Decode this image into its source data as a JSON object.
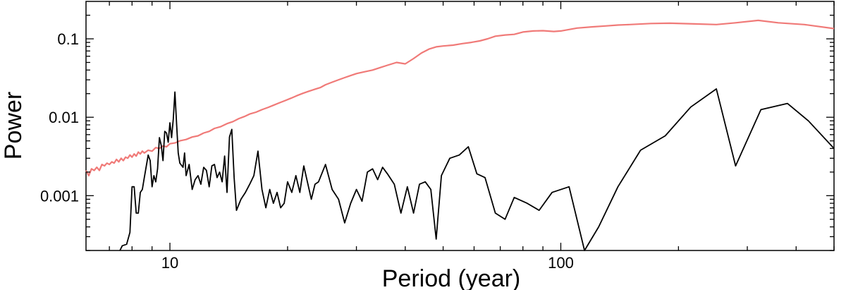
{
  "chart_data": {
    "type": "line",
    "title": "",
    "xlabel": "Period (year)",
    "ylabel": "Power",
    "x_scale": "log",
    "y_scale": "log",
    "xlim": [
      6.1,
      500
    ],
    "ylim": [
      0.0002,
      0.3
    ],
    "grid": false,
    "legend": "none",
    "x_ticks": [
      {
        "value": 10,
        "label": "10"
      },
      {
        "value": 100,
        "label": "100"
      }
    ],
    "y_ticks": [
      {
        "value": 0.001,
        "label": "0.001"
      },
      {
        "value": 0.01,
        "label": "0.01"
      },
      {
        "value": 0.1,
        "label": "0.1"
      }
    ],
    "series": [
      {
        "color": "#f07a78",
        "points": [
          [
            6.1,
            0.0021
          ],
          [
            6.2,
            0.0018
          ],
          [
            6.3,
            0.0022
          ],
          [
            6.4,
            0.0021
          ],
          [
            6.5,
            0.0023
          ],
          [
            6.6,
            0.0021
          ],
          [
            6.7,
            0.0025
          ],
          [
            6.8,
            0.0024
          ],
          [
            6.9,
            0.0026
          ],
          [
            7.0,
            0.0025
          ],
          [
            7.1,
            0.0027
          ],
          [
            7.2,
            0.0026
          ],
          [
            7.3,
            0.0029
          ],
          [
            7.4,
            0.0027
          ],
          [
            7.5,
            0.003
          ],
          [
            7.6,
            0.0028
          ],
          [
            7.7,
            0.0031
          ],
          [
            7.8,
            0.003
          ],
          [
            7.9,
            0.0033
          ],
          [
            8.0,
            0.0031
          ],
          [
            8.1,
            0.0034
          ],
          [
            8.2,
            0.0032
          ],
          [
            8.3,
            0.0036
          ],
          [
            8.4,
            0.0034
          ],
          [
            8.5,
            0.0037
          ],
          [
            8.6,
            0.0035
          ],
          [
            8.8,
            0.0038
          ],
          [
            9.0,
            0.0037
          ],
          [
            9.2,
            0.0041
          ],
          [
            9.4,
            0.004
          ],
          [
            9.6,
            0.0043
          ],
          [
            9.8,
            0.0042
          ],
          [
            10.0,
            0.0046
          ],
          [
            10.3,
            0.0047
          ],
          [
            10.6,
            0.005
          ],
          [
            11.0,
            0.0052
          ],
          [
            11.4,
            0.0056
          ],
          [
            11.8,
            0.0058
          ],
          [
            12.2,
            0.0063
          ],
          [
            12.6,
            0.0066
          ],
          [
            13.0,
            0.0072
          ],
          [
            13.5,
            0.0076
          ],
          [
            14.0,
            0.0083
          ],
          [
            14.5,
            0.0088
          ],
          [
            15.0,
            0.0096
          ],
          [
            15.5,
            0.0102
          ],
          [
            16.0,
            0.011
          ],
          [
            16.6,
            0.0116
          ],
          [
            17.2,
            0.0125
          ],
          [
            17.8,
            0.0133
          ],
          [
            18.4,
            0.0142
          ],
          [
            19.0,
            0.0152
          ],
          [
            19.7,
            0.0163
          ],
          [
            20.4,
            0.0175
          ],
          [
            21.1,
            0.0188
          ],
          [
            21.9,
            0.0202
          ],
          [
            22.7,
            0.0215
          ],
          [
            23.5,
            0.0228
          ],
          [
            24.3,
            0.024
          ],
          [
            25.0,
            0.026
          ],
          [
            26.0,
            0.028
          ],
          [
            27.0,
            0.03
          ],
          [
            28.0,
            0.032
          ],
          [
            29.0,
            0.034
          ],
          [
            30.0,
            0.036
          ],
          [
            31.5,
            0.038
          ],
          [
            33.0,
            0.04
          ],
          [
            34.5,
            0.043
          ],
          [
            36.0,
            0.046
          ],
          [
            38.0,
            0.05
          ],
          [
            40.0,
            0.048
          ],
          [
            42.0,
            0.056
          ],
          [
            44.0,
            0.066
          ],
          [
            46.0,
            0.074
          ],
          [
            48.0,
            0.079
          ],
          [
            50.0,
            0.081
          ],
          [
            53.0,
            0.083
          ],
          [
            56.0,
            0.087
          ],
          [
            59.0,
            0.09
          ],
          [
            62.0,
            0.094
          ],
          [
            65.0,
            0.1
          ],
          [
            68.0,
            0.108
          ],
          [
            72.0,
            0.112
          ],
          [
            76.0,
            0.114
          ],
          [
            80.0,
            0.122
          ],
          [
            85.0,
            0.126
          ],
          [
            90.0,
            0.127
          ],
          [
            96.0,
            0.124
          ],
          [
            100.0,
            0.126
          ],
          [
            110.0,
            0.137
          ],
          [
            120.0,
            0.142
          ],
          [
            130.0,
            0.146
          ],
          [
            140.0,
            0.15
          ],
          [
            150.0,
            0.152
          ],
          [
            170.0,
            0.157
          ],
          [
            190.0,
            0.158
          ],
          [
            220.0,
            0.155
          ],
          [
            250.0,
            0.152
          ],
          [
            280.0,
            0.16
          ],
          [
            320.0,
            0.172
          ],
          [
            360.0,
            0.16
          ],
          [
            420.0,
            0.152
          ],
          [
            500.0,
            0.135
          ]
        ]
      },
      {
        "color": "#000000",
        "points": [
          [
            7.45,
            0.0002
          ],
          [
            7.55,
            0.00023
          ],
          [
            7.75,
            0.00024
          ],
          [
            7.9,
            0.00034
          ],
          [
            8.0,
            0.0013
          ],
          [
            8.1,
            0.0013
          ],
          [
            8.2,
            0.0006
          ],
          [
            8.3,
            0.0006
          ],
          [
            8.4,
            0.0011
          ],
          [
            8.5,
            0.0012
          ],
          [
            8.6,
            0.0017
          ],
          [
            8.8,
            0.0033
          ],
          [
            8.9,
            0.0028
          ],
          [
            9.0,
            0.0013
          ],
          [
            9.1,
            0.0018
          ],
          [
            9.2,
            0.0015
          ],
          [
            9.3,
            0.0022
          ],
          [
            9.4,
            0.0055
          ],
          [
            9.5,
            0.0044
          ],
          [
            9.6,
            0.0028
          ],
          [
            9.7,
            0.0066
          ],
          [
            9.8,
            0.0063
          ],
          [
            9.9,
            0.0048
          ],
          [
            10.0,
            0.0085
          ],
          [
            10.1,
            0.0055
          ],
          [
            10.2,
            0.0095
          ],
          [
            10.3,
            0.021
          ],
          [
            10.4,
            0.0082
          ],
          [
            10.5,
            0.0035
          ],
          [
            10.6,
            0.0026
          ],
          [
            10.8,
            0.0023
          ],
          [
            10.9,
            0.0035
          ],
          [
            11.0,
            0.0018
          ],
          [
            11.2,
            0.0025
          ],
          [
            11.4,
            0.0012
          ],
          [
            11.6,
            0.0016
          ],
          [
            11.8,
            0.0018
          ],
          [
            12.0,
            0.0014
          ],
          [
            12.2,
            0.0023
          ],
          [
            12.4,
            0.0021
          ],
          [
            12.6,
            0.0013
          ],
          [
            12.8,
            0.0024
          ],
          [
            13.0,
            0.0025
          ],
          [
            13.2,
            0.0017
          ],
          [
            13.4,
            0.002
          ],
          [
            13.6,
            0.0015
          ],
          [
            13.8,
            0.0032
          ],
          [
            14.0,
            0.0011
          ],
          [
            14.2,
            0.0056
          ],
          [
            14.4,
            0.007
          ],
          [
            14.6,
            0.0017
          ],
          [
            14.8,
            0.00065
          ],
          [
            15.2,
            0.0009
          ],
          [
            15.6,
            0.0011
          ],
          [
            16.0,
            0.0014
          ],
          [
            16.4,
            0.0018
          ],
          [
            16.8,
            0.0037
          ],
          [
            17.2,
            0.0012
          ],
          [
            17.6,
            0.0007
          ],
          [
            18.0,
            0.0012
          ],
          [
            18.4,
            0.0008
          ],
          [
            18.8,
            0.0011
          ],
          [
            19.2,
            0.0007
          ],
          [
            19.6,
            0.0008
          ],
          [
            20.0,
            0.0015
          ],
          [
            20.5,
            0.0011
          ],
          [
            21.0,
            0.0018
          ],
          [
            21.5,
            0.0011
          ],
          [
            22.0,
            0.0024
          ],
          [
            23.0,
            0.0009
          ],
          [
            23.5,
            0.0014
          ],
          [
            24.0,
            0.0015
          ],
          [
            25.0,
            0.0025
          ],
          [
            26.0,
            0.0012
          ],
          [
            27.0,
            0.0009
          ],
          [
            28.0,
            0.00045
          ],
          [
            29.0,
            0.0008
          ],
          [
            30.0,
            0.0012
          ],
          [
            31.0,
            0.00085
          ],
          [
            32.0,
            0.002
          ],
          [
            33.0,
            0.0022
          ],
          [
            34.0,
            0.0016
          ],
          [
            35.0,
            0.0023
          ],
          [
            36.0,
            0.0019
          ],
          [
            37.5,
            0.0014
          ],
          [
            39.0,
            0.0006
          ],
          [
            40.5,
            0.0013
          ],
          [
            42.0,
            0.0006
          ],
          [
            43.5,
            0.0014
          ],
          [
            45.0,
            0.0015
          ],
          [
            46.5,
            0.0012
          ],
          [
            48.0,
            0.00028
          ],
          [
            49.5,
            0.0018
          ],
          [
            52.0,
            0.003
          ],
          [
            55.0,
            0.0033
          ],
          [
            58.0,
            0.0042
          ],
          [
            61.0,
            0.0019
          ],
          [
            64.0,
            0.0017
          ],
          [
            68.0,
            0.0006
          ],
          [
            72.0,
            0.0005
          ],
          [
            76.0,
            0.00095
          ],
          [
            82.0,
            0.0008
          ],
          [
            88.0,
            0.00065
          ],
          [
            95.0,
            0.0011
          ],
          [
            105.0,
            0.0013
          ],
          [
            115.0,
            0.0002
          ],
          [
            125.0,
            0.0004
          ],
          [
            140.0,
            0.0013
          ],
          [
            160.0,
            0.0038
          ],
          [
            185.0,
            0.0058
          ],
          [
            215.0,
            0.0135
          ],
          [
            250.0,
            0.023
          ],
          [
            280.0,
            0.0024
          ],
          [
            325.0,
            0.0125
          ],
          [
            380.0,
            0.015
          ],
          [
            430.0,
            0.009
          ],
          [
            500.0,
            0.004
          ]
        ]
      }
    ]
  }
}
